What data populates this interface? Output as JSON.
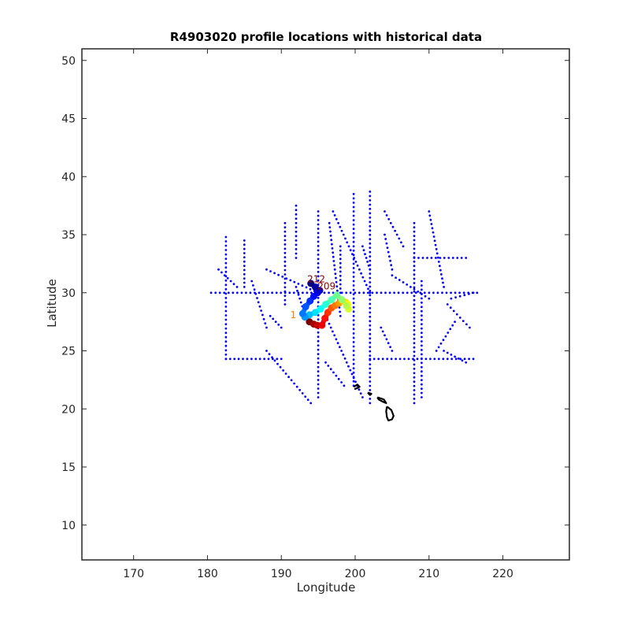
{
  "chart_data": {
    "type": "scatter",
    "title": "R4903020 profile locations with historical data",
    "xlabel": "Longitude",
    "ylabel": "Latitude",
    "xlim": [
      163,
      229
    ],
    "ylim": [
      7,
      51
    ],
    "xticks": [
      "170",
      "180",
      "190",
      "200",
      "210",
      "220"
    ],
    "yticks": [
      "10",
      "15",
      "20",
      "25",
      "30",
      "35",
      "40",
      "45",
      "50"
    ],
    "grid": false,
    "colors": {
      "historical": "#0000ff",
      "coast": "#000000"
    },
    "historical_transects": [
      {
        "x": [
          180.5,
          216.5
        ],
        "y": [
          30,
          30
        ]
      },
      {
        "x": [
          202,
          202
        ],
        "y": [
          38.7,
          20.5
        ]
      },
      {
        "x": [
          208,
          208
        ],
        "y": [
          36,
          20.5
        ]
      },
      {
        "x": [
          202,
          216
        ],
        "y": [
          24.3,
          24.3
        ]
      },
      {
        "x": [
          199.8,
          199.8
        ],
        "y": [
          38.5,
          22
        ]
      },
      {
        "x": [
          195,
          195
        ],
        "y": [
          37,
          21
        ]
      },
      {
        "x": [
          182.5,
          182.5
        ],
        "y": [
          34.8,
          24.3
        ]
      },
      {
        "x": [
          185,
          185
        ],
        "y": [
          34.5,
          30.5
        ]
      },
      {
        "x": [
          182.5,
          190
        ],
        "y": [
          24.3,
          24.3
        ]
      },
      {
        "x": [
          188,
          194
        ],
        "y": [
          25,
          20.5
        ]
      },
      {
        "x": [
          197,
          202
        ],
        "y": [
          37,
          30
        ]
      },
      {
        "x": [
          196.5,
          198
        ],
        "y": [
          36,
          28
        ]
      },
      {
        "x": [
          190.5,
          190.5
        ],
        "y": [
          36,
          29
        ]
      },
      {
        "x": [
          192,
          192
        ],
        "y": [
          37.5,
          33
        ]
      },
      {
        "x": [
          198,
          198
        ],
        "y": [
          34,
          30
        ]
      },
      {
        "x": [
          208,
          215
        ],
        "y": [
          33,
          33
        ]
      },
      {
        "x": [
          210,
          212
        ],
        "y": [
          37,
          30.5
        ]
      },
      {
        "x": [
          204,
          206.5
        ],
        "y": [
          37,
          34
        ]
      },
      {
        "x": [
          211,
          213.5
        ],
        "y": [
          25,
          27.5
        ]
      },
      {
        "x": [
          212.5,
          215.5
        ],
        "y": [
          29,
          27
        ]
      },
      {
        "x": [
          212,
          215
        ],
        "y": [
          25,
          24
        ]
      },
      {
        "x": [
          204,
          205
        ],
        "y": [
          35,
          32
        ]
      },
      {
        "x": [
          209,
          209
        ],
        "y": [
          31,
          21
        ]
      },
      {
        "x": [
          196,
          201
        ],
        "y": [
          28,
          21
        ]
      },
      {
        "x": [
          186,
          188
        ],
        "y": [
          31,
          27
        ]
      },
      {
        "x": [
          181.5,
          184
        ],
        "y": [
          32,
          30.5
        ]
      },
      {
        "x": [
          188,
          195
        ],
        "y": [
          32,
          30
        ]
      },
      {
        "x": [
          205,
          210
        ],
        "y": [
          31.5,
          29.5
        ]
      },
      {
        "x": [
          196,
          198.5
        ],
        "y": [
          24,
          22
        ]
      },
      {
        "x": [
          192,
          193
        ],
        "y": [
          30.5,
          28.5
        ]
      },
      {
        "x": [
          201,
          202
        ],
        "y": [
          34,
          32
        ]
      },
      {
        "x": [
          203.5,
          205
        ],
        "y": [
          27,
          25
        ]
      },
      {
        "x": [
          213,
          216
        ],
        "y": [
          29.5,
          30
        ]
      },
      {
        "x": [
          188.5,
          190
        ],
        "y": [
          28,
          27
        ]
      }
    ],
    "float_track": [
      {
        "x": 193.8,
        "y": 27.5
      },
      {
        "x": 194.4,
        "y": 27.3
      },
      {
        "x": 194.9,
        "y": 27.2
      },
      {
        "x": 195.5,
        "y": 27.2
      },
      {
        "x": 195.9,
        "y": 27.8
      },
      {
        "x": 196.3,
        "y": 28.3
      },
      {
        "x": 196.8,
        "y": 28.7
      },
      {
        "x": 197.3,
        "y": 28.9
      },
      {
        "x": 197.8,
        "y": 29.1
      },
      {
        "x": 198.3,
        "y": 29.3
      },
      {
        "x": 198.7,
        "y": 29.2
      },
      {
        "x": 199.0,
        "y": 29.0
      },
      {
        "x": 199.1,
        "y": 28.6
      },
      {
        "x": 198.8,
        "y": 28.9
      },
      {
        "x": 198.2,
        "y": 29.4
      },
      {
        "x": 197.5,
        "y": 29.8
      },
      {
        "x": 196.8,
        "y": 29.4
      },
      {
        "x": 196.0,
        "y": 29.0
      },
      {
        "x": 195.3,
        "y": 28.6
      },
      {
        "x": 194.6,
        "y": 28.3
      },
      {
        "x": 193.8,
        "y": 28.1
      },
      {
        "x": 193.2,
        "y": 27.9
      },
      {
        "x": 192.9,
        "y": 28.2
      },
      {
        "x": 193.3,
        "y": 28.8
      },
      {
        "x": 193.9,
        "y": 29.3
      },
      {
        "x": 194.4,
        "y": 29.7
      },
      {
        "x": 194.9,
        "y": 30.0
      },
      {
        "x": 195.2,
        "y": 30.2
      },
      {
        "x": 194.6,
        "y": 30.5
      },
      {
        "x": 194.0,
        "y": 30.8
      }
    ],
    "float_labels": [
      {
        "text": "1",
        "x": 191.2,
        "y": 27.8
      },
      {
        "text": "212",
        "x": 193.5,
        "y": 30.9
      },
      {
        "text": "209",
        "x": 194.9,
        "y": 30.3
      }
    ],
    "coast_islands": [
      {
        "x": [
          199.8,
          200.3,
          200.6,
          200.3,
          199.9
        ],
        "y": [
          21.9,
          22.1,
          21.9,
          21.8,
          21.7
        ]
      },
      {
        "x": [
          201.7,
          202.2,
          202.0,
          201.7
        ],
        "y": [
          21.4,
          21.3,
          21.2,
          21.4
        ]
      },
      {
        "x": [
          203.0,
          203.5,
          203.9,
          204.2,
          203.8,
          203.2,
          203.0
        ],
        "y": [
          21.0,
          20.9,
          20.8,
          20.5,
          20.6,
          20.8,
          21.0
        ]
      },
      {
        "x": [
          204.3,
          204.9,
          205.2,
          205.0,
          204.5,
          204.3,
          204.2,
          204.3
        ],
        "y": [
          20.2,
          19.9,
          19.4,
          19.1,
          19.0,
          19.3,
          19.8,
          20.2
        ]
      }
    ]
  }
}
